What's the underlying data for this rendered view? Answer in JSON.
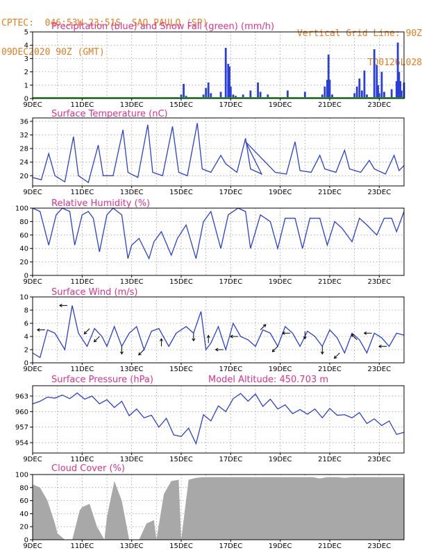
{
  "header": {
    "line1": "CPTEC:  046:53W-23:51S  SAO PAULO (SP)",
    "line2": "09DEC2020 90Z (GMT)",
    "right1": "Vertical Grid Line: 90Z",
    "right2": "TQ0126L028"
  },
  "colors": {
    "series": "#2a3fd6",
    "snow": "#1fa01f",
    "cloud": "#a8a8a8",
    "title": "#e0308c",
    "header": "#e87d1b"
  },
  "x_axis": {
    "labels": [
      "9DEC",
      "11DEC",
      "13DEC",
      "15DEC",
      "17DEC",
      "19DEC",
      "21DEC",
      "23DEC"
    ],
    "label_days": [
      9,
      11,
      13,
      15,
      17,
      19,
      21,
      23
    ],
    "start_day": 9,
    "end_day": 24
  },
  "chart_data": [
    {
      "type": "bar",
      "title": "Precipitation (blue) and Snow Fall (green) (mm/h)",
      "ylim": [
        0,
        5
      ],
      "yticks": [
        0,
        1,
        2,
        3,
        4,
        5
      ],
      "series": [
        {
          "name": "Precipitation",
          "x": [
            15.0,
            15.1,
            15.2,
            15.9,
            16.0,
            16.1,
            16.2,
            16.6,
            16.8,
            16.9,
            16.95,
            17.0,
            17.1,
            17.2,
            17.5,
            17.8,
            18.1,
            18.2,
            18.5,
            19.3,
            20.0,
            20.7,
            20.8,
            20.9,
            20.95,
            21.0,
            21.1,
            22.0,
            22.1,
            22.2,
            22.3,
            22.4,
            22.5,
            22.8,
            22.9,
            22.95,
            23.0,
            23.1,
            23.2,
            23.5,
            23.7,
            23.75,
            23.8,
            23.85,
            23.9,
            24.0
          ],
          "values": [
            0.3,
            1.1,
            0.2,
            0.3,
            0.8,
            1.2,
            0.4,
            0.5,
            3.8,
            2.6,
            2.4,
            0.9,
            0.3,
            0.2,
            0.3,
            0.6,
            1.2,
            0.5,
            0.3,
            0.6,
            0.5,
            0.3,
            0.9,
            1.4,
            3.3,
            1.4,
            0.3,
            0.4,
            0.9,
            1.5,
            0.6,
            2.1,
            0.3,
            3.7,
            2.5,
            1.0,
            0.4,
            2.0,
            0.5,
            0.7,
            1.3,
            4.2,
            2.0,
            1.3,
            0.6,
            1.2
          ]
        },
        {
          "name": "Snow Fall",
          "x": [
            9.0,
            24.0
          ],
          "values": [
            0.05,
            0.05
          ]
        }
      ]
    },
    {
      "type": "line",
      "title": "Surface Temperature (nC)",
      "ylim": [
        17,
        37
      ],
      "yticks": [
        20,
        24,
        28,
        32,
        36
      ],
      "series": [
        {
          "name": "Temperature",
          "x": [
            9.0,
            9.35,
            9.65,
            9.9,
            10.3,
            10.65,
            10.85,
            11.25,
            11.65,
            11.85,
            12.25,
            12.65,
            12.85,
            13.25,
            13.65,
            13.85,
            14.25,
            14.65,
            14.9,
            15.25,
            15.65,
            15.85,
            16.2,
            16.6,
            16.8,
            17.25,
            17.6,
            17.8,
            18.25,
            17.6,
            18.8,
            19.25,
            19.6,
            19.8,
            20.25,
            20.6,
            20.8,
            21.25,
            21.6,
            21.8,
            22.25,
            22.6,
            22.8,
            23.25,
            23.6,
            23.8,
            24.0
          ],
          "values": [
            19.5,
            18.8,
            26.5,
            20,
            18.2,
            31.5,
            20,
            18,
            29,
            20,
            20,
            33.5,
            21,
            19.5,
            35,
            21,
            20,
            34.5,
            21,
            20,
            35.5,
            22,
            21,
            26,
            23.5,
            21,
            31,
            22,
            20.5,
            30,
            21,
            20.5,
            30,
            21.5,
            21,
            26,
            22,
            21,
            27.5,
            22,
            21,
            24.5,
            22,
            20.5,
            26,
            21.5,
            23
          ]
        }
      ]
    },
    {
      "type": "line",
      "title": "Relative Humidity (%)",
      "ylim": [
        0,
        100
      ],
      "yticks": [
        0,
        20,
        40,
        60,
        80,
        100
      ],
      "series": [
        {
          "name": "Humidity",
          "x": [
            9.0,
            9.3,
            9.65,
            9.95,
            10.2,
            10.5,
            10.7,
            11.0,
            11.25,
            11.45,
            11.7,
            12.0,
            12.25,
            12.6,
            12.85,
            13.0,
            13.3,
            13.7,
            13.9,
            14.2,
            14.6,
            14.85,
            15.2,
            15.6,
            15.9,
            16.2,
            16.6,
            16.9,
            17.3,
            17.6,
            17.8,
            18.2,
            18.6,
            18.9,
            19.2,
            19.6,
            19.9,
            20.2,
            20.6,
            20.9,
            21.2,
            21.5,
            21.9,
            22.2,
            22.5,
            22.9,
            23.2,
            23.5,
            23.7,
            24.0
          ],
          "values": [
            100,
            95,
            45,
            90,
            100,
            95,
            45,
            90,
            95,
            85,
            35,
            90,
            100,
            90,
            25,
            45,
            55,
            25,
            50,
            65,
            30,
            55,
            75,
            25,
            80,
            95,
            40,
            90,
            100,
            95,
            40,
            90,
            80,
            40,
            85,
            85,
            40,
            85,
            85,
            45,
            80,
            70,
            50,
            85,
            75,
            60,
            85,
            85,
            65,
            95
          ]
        }
      ]
    },
    {
      "type": "line",
      "title": "Surface Wind (m/s)",
      "ylim": [
        0,
        10
      ],
      "yticks": [
        0,
        2,
        4,
        6,
        8,
        10
      ],
      "series": [
        {
          "name": "Wind speed",
          "x": [
            9.0,
            9.3,
            9.6,
            9.9,
            10.3,
            10.6,
            10.85,
            11.2,
            11.5,
            11.8,
            12.0,
            12.3,
            12.6,
            12.9,
            13.2,
            13.5,
            13.8,
            14.1,
            14.5,
            14.8,
            15.2,
            15.5,
            15.8,
            16.0,
            16.2,
            16.5,
            16.8,
            17.1,
            17.4,
            17.7,
            18.0,
            18.3,
            18.6,
            18.9,
            19.2,
            19.5,
            19.8,
            20.1,
            20.4,
            20.7,
            21.0,
            21.3,
            21.6,
            21.9,
            22.2,
            22.5,
            22.8,
            23.1,
            23.4,
            23.7,
            24.0
          ],
          "values": [
            1.5,
            0.8,
            5.0,
            4.5,
            2.0,
            8.7,
            4.5,
            2.5,
            5.2,
            4.0,
            2.5,
            5.5,
            2.5,
            4.5,
            5.5,
            2.0,
            4.8,
            5.2,
            2.5,
            4.5,
            5.5,
            4.5,
            7.8,
            2.0,
            3.0,
            5.5,
            2.0,
            6.0,
            4.0,
            3.5,
            2.5,
            5.0,
            4.5,
            2.5,
            5.5,
            4.5,
            2.5,
            4.8,
            4.0,
            2.5,
            5.0,
            3.8,
            1.5,
            4.5,
            3.5,
            1.5,
            4.5,
            3.8,
            2.5,
            4.5,
            4.2
          ]
        }
      ],
      "vectors": [
        {
          "x": 9.5,
          "dir": "W"
        },
        {
          "x": 10.4,
          "dir": "W"
        },
        {
          "x": 11.3,
          "dir": "SW"
        },
        {
          "x": 11.7,
          "dir": "SW"
        },
        {
          "x": 12.6,
          "dir": "S"
        },
        {
          "x": 13.5,
          "dir": "SW"
        },
        {
          "x": 14.2,
          "dir": "N"
        },
        {
          "x": 15.5,
          "dir": "S"
        },
        {
          "x": 16.1,
          "dir": "N"
        },
        {
          "x": 16.7,
          "dir": "W"
        },
        {
          "x": 17.3,
          "dir": "W"
        },
        {
          "x": 18.2,
          "dir": "NE"
        },
        {
          "x": 18.9,
          "dir": "SW"
        },
        {
          "x": 19.4,
          "dir": "W"
        },
        {
          "x": 20.0,
          "dir": "S"
        },
        {
          "x": 20.7,
          "dir": "S"
        },
        {
          "x": 21.4,
          "dir": "SW"
        },
        {
          "x": 22.1,
          "dir": "NW"
        },
        {
          "x": 22.7,
          "dir": "W"
        },
        {
          "x": 23.3,
          "dir": "W"
        }
      ]
    },
    {
      "type": "line",
      "title": "Surface Pressure (hPa)",
      "annotation": "Model Altitude: 450.703 m",
      "ylim": [
        952,
        965
      ],
      "yticks": [
        954,
        957,
        960,
        963
      ],
      "series": [
        {
          "name": "Pressure",
          "x": [
            9.0,
            9.3,
            9.6,
            9.9,
            10.2,
            10.5,
            10.8,
            11.1,
            11.4,
            11.7,
            12.0,
            12.3,
            12.6,
            12.9,
            13.2,
            13.5,
            13.8,
            14.1,
            14.4,
            14.7,
            15.0,
            15.3,
            15.6,
            15.9,
            16.2,
            16.5,
            16.8,
            17.1,
            17.4,
            17.7,
            18.0,
            18.3,
            18.6,
            18.9,
            19.2,
            19.5,
            19.8,
            20.1,
            20.4,
            20.7,
            21.0,
            21.3,
            21.6,
            21.9,
            22.2,
            22.5,
            22.8,
            23.1,
            23.4,
            23.7,
            24.0
          ],
          "values": [
            961.5,
            962,
            962.8,
            962.6,
            963.2,
            962.5,
            963.6,
            962.4,
            963.0,
            961.5,
            962.3,
            960.8,
            962.0,
            959.2,
            960.5,
            958.8,
            959.3,
            957.0,
            958.7,
            955.5,
            955.2,
            956.8,
            953.8,
            959.4,
            958.2,
            961.1,
            960.0,
            962.5,
            963.5,
            962.0,
            963.4,
            961.0,
            962.4,
            960.5,
            961.3,
            959.6,
            960.4,
            959.5,
            960.5,
            958.8,
            960.6,
            959.3,
            959.4,
            958.8,
            959.8,
            957.7,
            958.6,
            957.3,
            958.2,
            955.6,
            956.0
          ]
        }
      ]
    },
    {
      "type": "area",
      "title": "Cloud Cover (%)",
      "ylim": [
        0,
        100
      ],
      "yticks": [
        0,
        20,
        40,
        60,
        80,
        100
      ],
      "series": [
        {
          "name": "Cloud cover",
          "x": [
            9.0,
            9.3,
            9.6,
            9.9,
            10.0,
            10.3,
            10.6,
            10.9,
            11.0,
            11.3,
            11.6,
            11.9,
            12.0,
            12.3,
            12.6,
            12.9,
            13.0,
            13.3,
            13.6,
            13.9,
            14.0,
            14.3,
            14.6,
            14.9,
            15.0,
            15.3,
            15.6,
            15.9,
            16.0,
            16.3,
            16.6,
            16.9,
            17.0,
            17.3,
            17.6,
            17.9,
            18.0,
            18.3,
            18.6,
            18.9,
            19.0,
            19.3,
            19.6,
            19.9,
            20.0,
            20.3,
            20.6,
            20.9,
            21.0,
            21.3,
            21.6,
            21.9,
            22.0,
            22.3,
            22.6,
            22.9,
            23.0,
            23.3,
            23.6,
            23.9,
            24.0
          ],
          "values": [
            85,
            80,
            60,
            25,
            10,
            0,
            0,
            45,
            50,
            55,
            20,
            0,
            35,
            90,
            60,
            0,
            0,
            0,
            25,
            30,
            0,
            70,
            90,
            92,
            0,
            92,
            95,
            96,
            96,
            96,
            96,
            96,
            96,
            96,
            96,
            96,
            96,
            96,
            96,
            96,
            96,
            96,
            96,
            96,
            96,
            96,
            94,
            96,
            96,
            96,
            95,
            96,
            96,
            96,
            96,
            96,
            96,
            96,
            96,
            96,
            96
          ]
        }
      ]
    }
  ]
}
